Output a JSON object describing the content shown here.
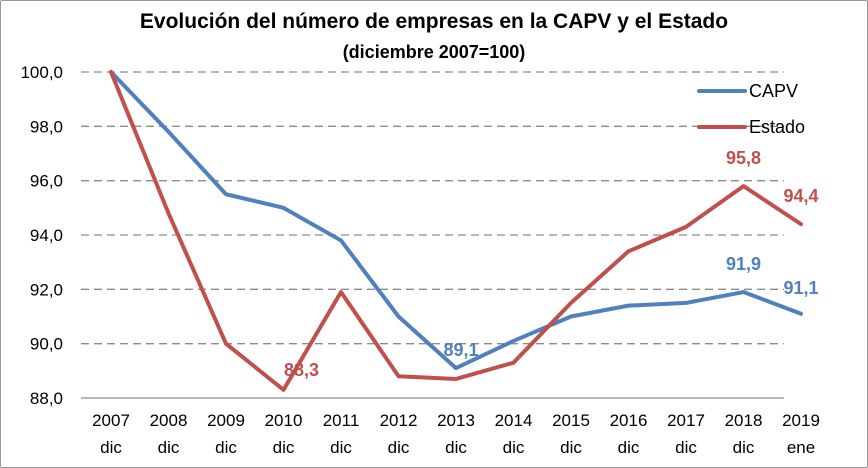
{
  "chart_data": {
    "type": "line",
    "title": "Evolución del número de empresas en la CAPV y el Estado",
    "subtitle": "(diciembre 2007=100)",
    "categories": [
      [
        "2007",
        "dic"
      ],
      [
        "2008",
        "dic"
      ],
      [
        "2009",
        "dic"
      ],
      [
        "2010",
        "dic"
      ],
      [
        "2011",
        "dic"
      ],
      [
        "2012",
        "dic"
      ],
      [
        "2013",
        "dic"
      ],
      [
        "2014",
        "dic"
      ],
      [
        "2015",
        "dic"
      ],
      [
        "2016",
        "dic"
      ],
      [
        "2017",
        "dic"
      ],
      [
        "2018",
        "dic"
      ],
      [
        "2019",
        "ene"
      ]
    ],
    "ylim": [
      88,
      100
    ],
    "yticks": [
      88,
      90,
      92,
      94,
      96,
      98,
      100
    ],
    "ytick_labels": [
      "88,0",
      "90,0",
      "92,0",
      "94,0",
      "96,0",
      "98,0",
      "100,0"
    ],
    "grid": "horizontal dashed",
    "legend_position": "top-right",
    "series": [
      {
        "name": "CAPV",
        "color": "#4f81bd",
        "values": [
          100.0,
          97.8,
          95.5,
          95.0,
          93.8,
          91.0,
          89.1,
          90.1,
          91.0,
          91.4,
          91.5,
          91.9,
          91.1
        ],
        "labels": [
          {
            "index": 6,
            "text": "89,1"
          },
          {
            "index": 11,
            "text": "91,9"
          },
          {
            "index": 12,
            "text": "91,1"
          }
        ]
      },
      {
        "name": "Estado",
        "color": "#c0504d",
        "values": [
          100.0,
          94.8,
          90.0,
          88.3,
          91.9,
          88.8,
          88.7,
          89.3,
          91.5,
          93.4,
          94.3,
          95.8,
          94.4
        ],
        "labels": [
          {
            "index": 3,
            "text": "88,3"
          },
          {
            "index": 11,
            "text": "95,8"
          },
          {
            "index": 12,
            "text": "94,4"
          }
        ]
      }
    ]
  }
}
